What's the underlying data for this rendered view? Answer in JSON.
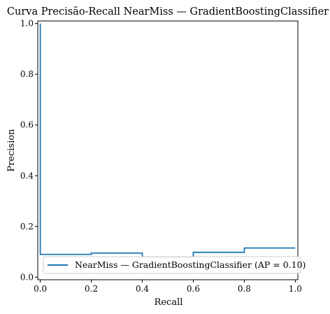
{
  "chart_data": {
    "type": "line",
    "title": "Curva Precisão-Recall NearMiss — GradientBoostingClassifier",
    "xlabel": "Recall",
    "ylabel": "Precision",
    "xlim": [
      -0.01,
      1.01
    ],
    "ylim": [
      -0.01,
      1.01
    ],
    "xticks": [
      0.0,
      0.2,
      0.4,
      0.6,
      0.8,
      1.0
    ],
    "xtick_labels": [
      "0.0",
      "0.2",
      "0.4",
      "0.6",
      "0.8",
      "1.0"
    ],
    "yticks": [
      0.0,
      0.2,
      0.4,
      0.6,
      0.8,
      1.0
    ],
    "ytick_labels": [
      "0.0",
      "0.2",
      "0.4",
      "0.6",
      "0.8",
      "1.0"
    ],
    "grid": false,
    "legend_position": "lower-right",
    "series": [
      {
        "name": "NearMiss — GradientBoostingClassifier (AP = 0.10)",
        "color": "#1f77b4",
        "drawstyle": "steps",
        "x": [
          0.0,
          0.0,
          0.0,
          0.2,
          0.2,
          0.4,
          0.4,
          0.6,
          0.6,
          0.8,
          0.8,
          1.0
        ],
        "y": [
          1.0,
          1.0,
          0.09,
          0.09,
          0.095,
          0.095,
          0.08,
          0.08,
          0.098,
          0.098,
          0.115,
          0.115
        ]
      }
    ]
  }
}
